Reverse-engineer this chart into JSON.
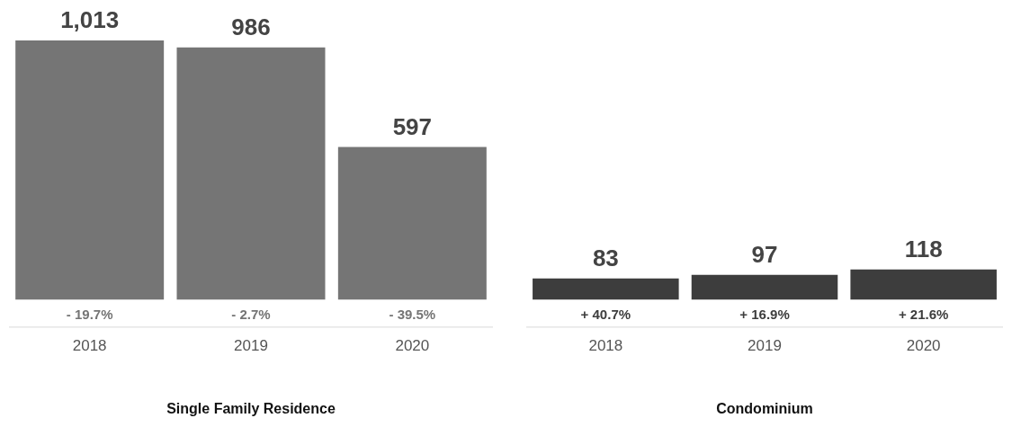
{
  "chart_data": [
    {
      "type": "bar",
      "categories": [
        "2018",
        "2019",
        "2020"
      ],
      "values": [
        1013,
        986,
        597
      ],
      "value_labels": [
        "1,013",
        "986",
        "597"
      ],
      "color": "#757575",
      "tick_labels": "x",
      "xlabel": "Single Family Residence",
      "grid": false,
      "legend": false,
      "annotations": [
        {
          "text": "- 19.7%",
          "x": "2018",
          "y": 0
        },
        {
          "text": "- 2.7%",
          "x": "2019",
          "y": 0
        },
        {
          "text": "- 39.5%",
          "x": "2020",
          "y": 0
        }
      ]
    },
    {
      "type": "bar",
      "categories": [
        "2018",
        "2019",
        "2020"
      ],
      "values": [
        83,
        97,
        118
      ],
      "value_labels": [
        "83",
        "97",
        "118"
      ],
      "color": "#3d3d3d",
      "tick_labels": "x",
      "xlabel": "Condominium",
      "grid": false,
      "legend": false,
      "annotations": [
        {
          "text": "+ 40.7%",
          "x": "2018",
          "y": 0
        },
        {
          "text": "+ 16.9%",
          "x": "2019",
          "y": 0
        },
        {
          "text": "+ 21.6%",
          "x": "2020",
          "y": 0
        }
      ]
    }
  ]
}
